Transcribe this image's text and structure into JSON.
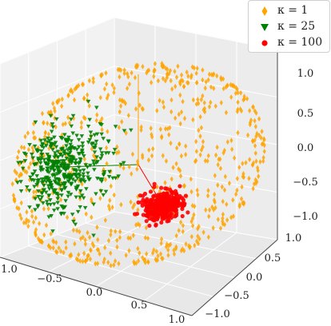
{
  "chart_data": {
    "type": "scatter",
    "projection": "3d",
    "title": "",
    "xlabel": "",
    "ylabel": "",
    "zlabel": "",
    "xlim": [
      -1.0,
      1.0
    ],
    "ylim": [
      -1.0,
      1.0
    ],
    "zlim": [
      -1.0,
      1.0
    ],
    "x_ticks": [
      "−1.0",
      "−0.5",
      "0.0",
      "0.5",
      "1.0"
    ],
    "y_ticks": [
      "−1.0",
      "−0.5",
      "0.0",
      "0.5",
      "1.0"
    ],
    "z_ticks": [
      "−1.0",
      "−0.5",
      "0.0",
      "0.5",
      "1.0"
    ],
    "grid": true,
    "legend_position": "top-right",
    "series": [
      {
        "name": "κ = 1",
        "marker": "diamond",
        "color": "#FFA500",
        "mean_direction": [
          0.0,
          0.0,
          0.0
        ],
        "spread": "uniform",
        "count": 700
      },
      {
        "name": "κ = 25",
        "marker": "triangle-down",
        "color": "#008000",
        "mean_direction": [
          -0.15,
          -0.95,
          -0.25
        ],
        "spread": "medium",
        "count": 420
      },
      {
        "name": "κ = 100",
        "marker": "circle",
        "color": "#FF0000",
        "mean_direction": [
          0.6,
          0.8,
          -0.05
        ],
        "spread": "tight",
        "count": 350
      }
    ]
  }
}
